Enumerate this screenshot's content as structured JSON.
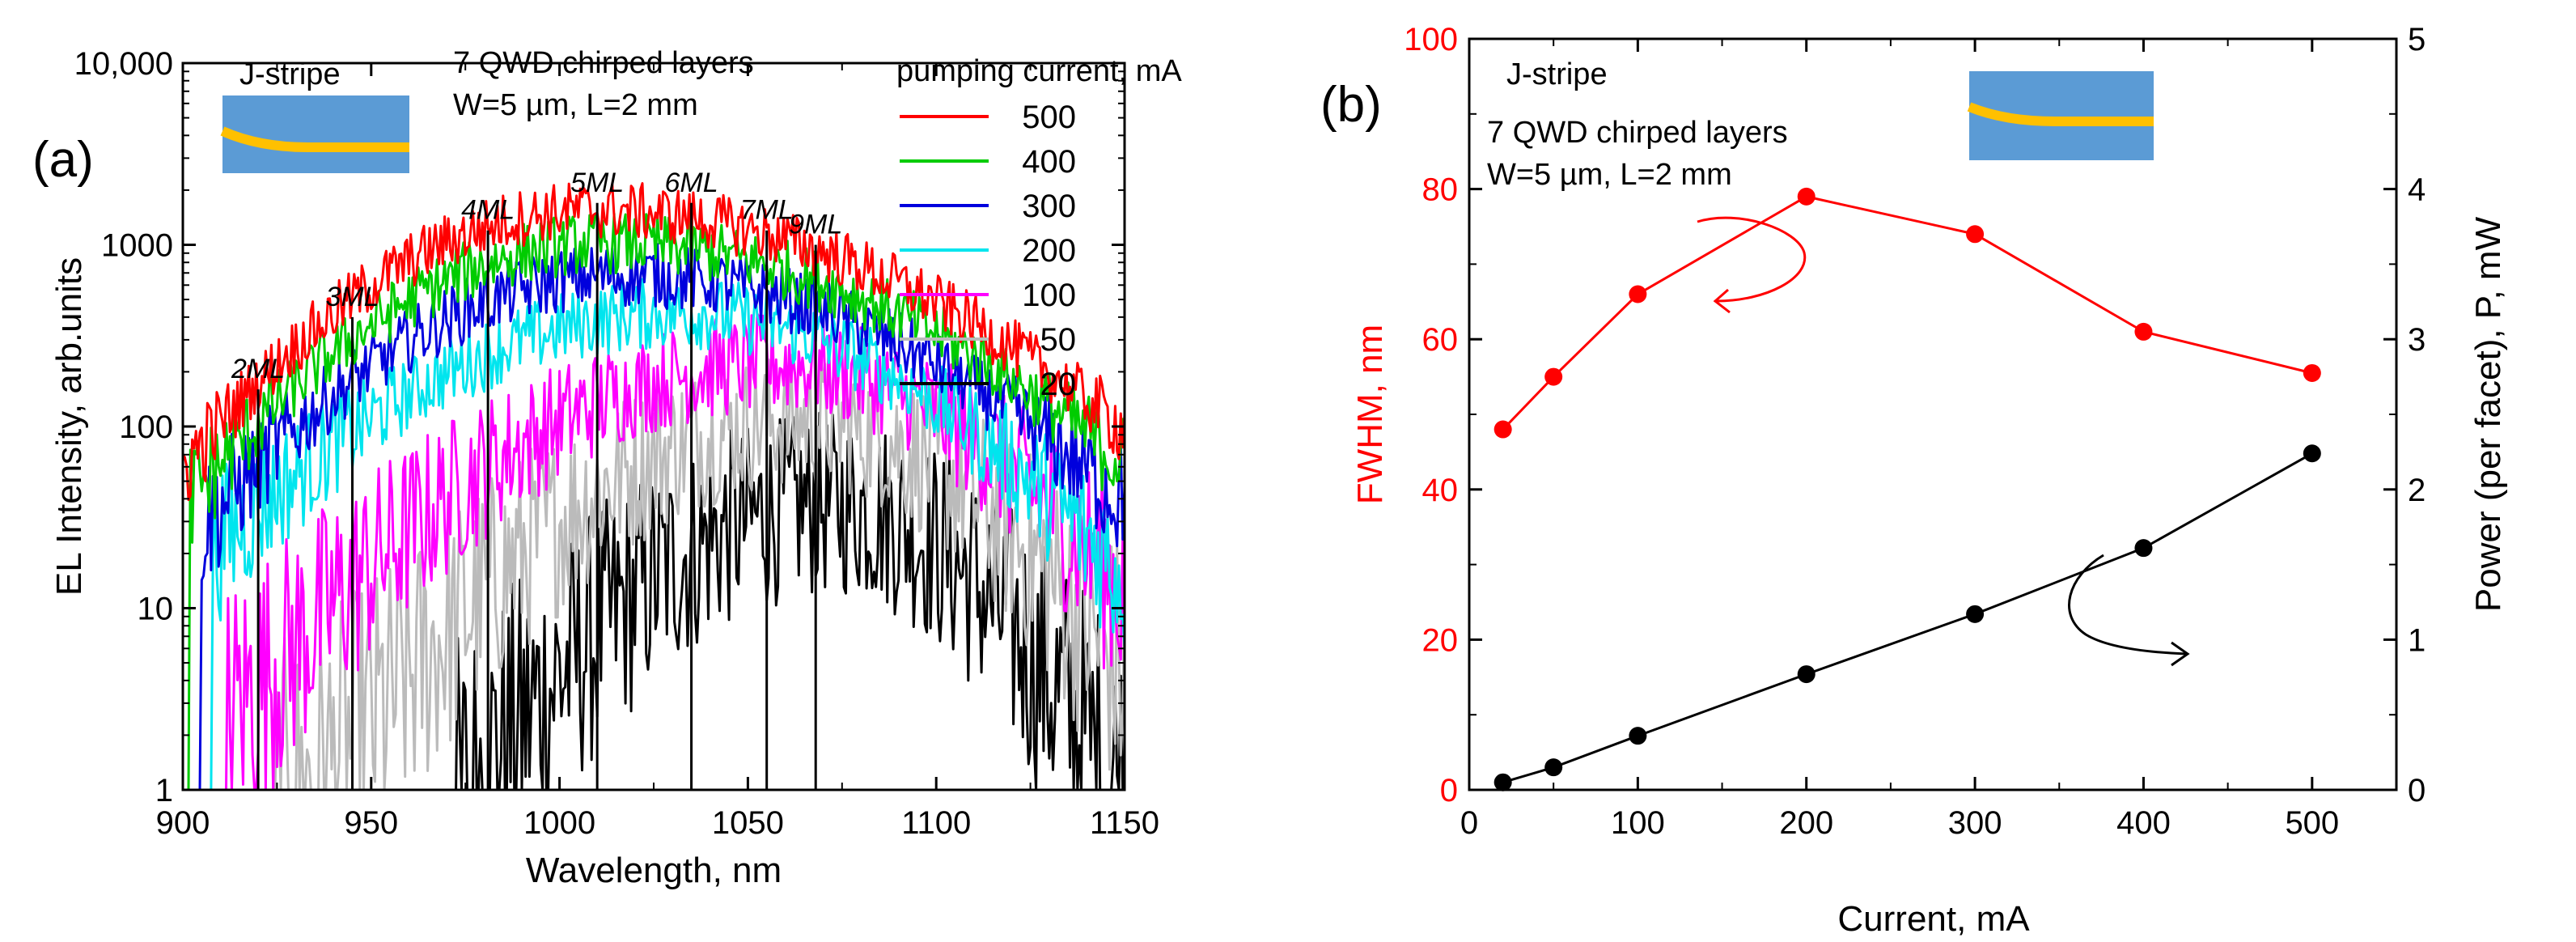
{
  "chart_data": [
    {
      "panel_label": "(a)",
      "type": "line",
      "xlabel": "Wavelength, nm",
      "ylabel": "EL Intensity, arb.units",
      "xlim": [
        900,
        1150
      ],
      "ylim": [
        1,
        10000
      ],
      "yscale": "log",
      "xticks": [
        900,
        950,
        1000,
        1050,
        1100,
        1150
      ],
      "yticks": [
        {
          "value": 1,
          "label": "1"
        },
        {
          "value": 10,
          "label": "10"
        },
        {
          "value": 100,
          "label": "100"
        },
        {
          "value": 1000,
          "label": "1000"
        },
        {
          "value": 10000,
          "label": "10,000"
        }
      ],
      "inset_label": "J-stripe",
      "structure_text": [
        "7 QWD chirped layers",
        "W=5 µm, L=2 mm"
      ],
      "legend_title": "pumping current, mA",
      "legend_position": "top-right",
      "series": [
        {
          "name": "500",
          "color": "#ff0000",
          "peak_nm": 1008,
          "peak": 1550,
          "sigma_left": 42,
          "sigma_right": 60,
          "low_floor": 9,
          "floor_edge_nm": 900,
          "noise": 0.16
        },
        {
          "name": "400",
          "color": "#00cc00",
          "peak_nm": 1012,
          "peak": 1020,
          "sigma_left": 43,
          "sigma_right": 58,
          "low_floor": 7,
          "floor_edge_nm": 902,
          "noise": 0.17
        },
        {
          "name": "300",
          "color": "#0000dd",
          "peak_nm": 1017,
          "peak": 680,
          "sigma_left": 44,
          "sigma_right": 55,
          "low_floor": 6,
          "floor_edge_nm": 905,
          "noise": 0.18
        },
        {
          "name": "200",
          "color": "#00e5ee",
          "peak_nm": 1032,
          "peak": 420,
          "sigma_left": 50,
          "sigma_right": 45,
          "low_floor": 5,
          "floor_edge_nm": 908,
          "noise": 0.2
        },
        {
          "name": "100",
          "color": "#ff00ff",
          "peak_nm": 1057,
          "peak": 220,
          "sigma_left": 47,
          "sigma_right": 38,
          "low_floor": 2.5,
          "floor_edge_nm": 912,
          "noise": 0.28
        },
        {
          "name": "50",
          "color": "#bbbbbb",
          "peak_nm": 1064,
          "peak": 108,
          "sigma_left": 40,
          "sigma_right": 33,
          "low_floor": 1.5,
          "floor_edge_nm": 925,
          "noise": 0.33
        },
        {
          "name": "20",
          "color": "#000000",
          "peak_nm": 1072,
          "peak": 37,
          "sigma_left": 34,
          "sigma_right": 27,
          "low_floor": 1.1,
          "floor_edge_nm": 973,
          "noise": 0.34
        }
      ],
      "annotations": [
        {
          "label": "2ML",
          "x": 920,
          "top": 160
        },
        {
          "label": "3ML",
          "x": 945,
          "top": 400
        },
        {
          "label": "4ML",
          "x": 981,
          "top": 1200
        },
        {
          "label": "5ML",
          "x": 1010,
          "top": 1700
        },
        {
          "label": "6ML",
          "x": 1035,
          "top": 1700
        },
        {
          "label": "7ML",
          "x": 1055,
          "top": 1200
        },
        {
          "label": "9ML",
          "x": 1068,
          "top": 1000
        }
      ]
    },
    {
      "panel_label": "(b)",
      "type": "line",
      "xlabel": "Current, mA",
      "ylabel_left": "FWHM, nm",
      "ylabel_right": "Power (per facet), P, mW",
      "xlim": [
        0,
        550
      ],
      "ylim_left": [
        0,
        100
      ],
      "ylim_right": [
        0,
        5
      ],
      "xticks": [
        0,
        100,
        200,
        300,
        400,
        500
      ],
      "yticks_left": [
        0,
        20,
        40,
        60,
        80,
        100
      ],
      "yticks_right": [
        0,
        1,
        2,
        3,
        4,
        5
      ],
      "inset_label": "J-stripe",
      "structure_text": [
        "7 QWD chirped layers",
        "W=5 µm, L=2 mm"
      ],
      "series": [
        {
          "name": "FWHM",
          "axis": "left",
          "color": "#ff0000",
          "x": [
            20,
            50,
            100,
            200,
            300,
            400,
            500
          ],
          "y": [
            48,
            55,
            66,
            79,
            74,
            61,
            55.5
          ]
        },
        {
          "name": "Power",
          "axis": "right",
          "color": "#000000",
          "x": [
            20,
            50,
            100,
            200,
            300,
            400,
            500
          ],
          "y": [
            0.05,
            0.15,
            0.36,
            0.77,
            1.17,
            1.61,
            2.24
          ]
        }
      ]
    }
  ],
  "colors": {
    "fwhm_axis": "#ff0000",
    "inset_fill": "#5b9bd5",
    "inset_stripe": "#ffc000",
    "axis": "#000000"
  }
}
